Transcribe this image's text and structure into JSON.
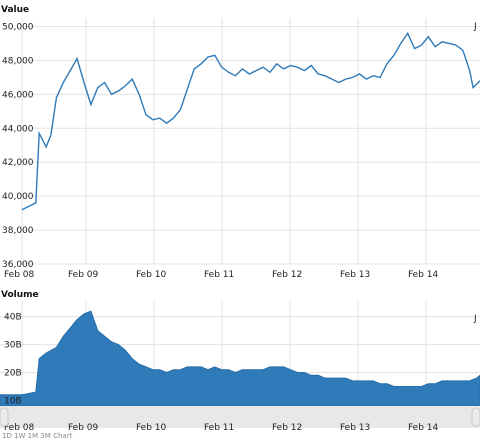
{
  "charts": {
    "value_title": "Value",
    "volume_title": "Volume",
    "corner_label": "J",
    "footer_text": "1D  1W  1M  3M  Chart"
  },
  "chart_data": [
    {
      "type": "line",
      "title": "Value",
      "xlabel": "",
      "ylabel": "",
      "x_ticks": [
        "Feb 08",
        "Feb 09",
        "Feb 10",
        "Feb 11",
        "Feb 12",
        "Feb 13",
        "Feb 14"
      ],
      "y_ticks": [
        "36,000",
        "38,000",
        "40,000",
        "42,000",
        "44,000",
        "46,000",
        "48,000",
        "50,000"
      ],
      "ylim": [
        36000,
        50500
      ],
      "xlim": [
        0,
        6.65
      ],
      "grid": true,
      "series_color": "#2f7ab9",
      "series": [
        {
          "name": "",
          "x": [
            0.0,
            0.1,
            0.2,
            0.25,
            0.3,
            0.35,
            0.42,
            0.5,
            0.6,
            0.7,
            0.8,
            0.9,
            1.0,
            1.1,
            1.2,
            1.3,
            1.4,
            1.5,
            1.6,
            1.7,
            1.8,
            1.9,
            2.0,
            2.1,
            2.2,
            2.3,
            2.4,
            2.5,
            2.6,
            2.7,
            2.8,
            2.9,
            3.0,
            3.1,
            3.2,
            3.3,
            3.4,
            3.5,
            3.6,
            3.7,
            3.8,
            3.9,
            4.0,
            4.1,
            4.2,
            4.3,
            4.4,
            4.5,
            4.6,
            4.7,
            4.8,
            4.9,
            5.0,
            5.1,
            5.2,
            5.3,
            5.4,
            5.5,
            5.6,
            5.7,
            5.8,
            5.9,
            6.0,
            6.1,
            6.2,
            6.3,
            6.4,
            6.5,
            6.55,
            6.65
          ],
          "y": [
            39200,
            39400,
            39600,
            43700,
            43300,
            42900,
            43600,
            45800,
            46700,
            47400,
            48100,
            46700,
            45400,
            46400,
            46700,
            46000,
            46200,
            46500,
            46900,
            46000,
            44800,
            44500,
            44600,
            44300,
            44600,
            45100,
            46300,
            47500,
            47800,
            48200,
            48300,
            47600,
            47300,
            47100,
            47500,
            47200,
            47400,
            47600,
            47300,
            47800,
            47500,
            47700,
            47600,
            47400,
            47700,
            47200,
            47100,
            46900,
            46700,
            46900,
            47000,
            47200,
            46900,
            47100,
            47000,
            47800,
            48300,
            49000,
            49600,
            48700,
            48900,
            49400,
            48800,
            49100,
            49000,
            48900,
            48600,
            47400,
            46400,
            46800
          ]
        }
      ]
    },
    {
      "type": "area",
      "title": "Volume",
      "xlabel": "",
      "ylabel": "",
      "x_ticks": [
        "Feb 08",
        "Feb 09",
        "Feb 10",
        "Feb 11",
        "Feb 12",
        "Feb 13",
        "Feb 14"
      ],
      "y_ticks": [
        "10B",
        "20B",
        "30B",
        "40B"
      ],
      "ylim": [
        8,
        46
      ],
      "xlim": [
        0,
        6.65
      ],
      "grid": true,
      "series_color": "#2f7ab9",
      "series": [
        {
          "name": "",
          "x": [
            0.0,
            0.2,
            0.25,
            0.35,
            0.5,
            0.6,
            0.7,
            0.8,
            0.9,
            1.0,
            1.1,
            1.2,
            1.3,
            1.4,
            1.5,
            1.6,
            1.7,
            1.8,
            1.9,
            2.0,
            2.1,
            2.2,
            2.3,
            2.4,
            2.5,
            2.6,
            2.7,
            2.8,
            2.9,
            3.0,
            3.1,
            3.2,
            3.3,
            3.4,
            3.5,
            3.6,
            3.7,
            3.8,
            3.9,
            4.0,
            4.1,
            4.2,
            4.3,
            4.4,
            4.5,
            4.6,
            4.7,
            4.8,
            4.9,
            5.0,
            5.1,
            5.2,
            5.3,
            5.4,
            5.5,
            5.6,
            5.7,
            5.8,
            5.9,
            6.0,
            6.1,
            6.2,
            6.3,
            6.4,
            6.5,
            6.6,
            6.65
          ],
          "y": [
            12,
            13,
            25,
            27,
            29,
            33,
            36,
            39,
            41,
            42,
            35,
            33,
            31,
            30,
            28,
            25,
            23,
            22,
            21,
            21,
            20,
            21,
            21,
            22,
            22,
            22,
            21,
            22,
            21,
            21,
            20,
            21,
            21,
            21,
            21,
            22,
            22,
            22,
            21,
            20,
            20,
            19,
            19,
            18,
            18,
            18,
            18,
            17,
            17,
            17,
            17,
            16,
            16,
            15,
            15,
            15,
            15,
            15,
            16,
            16,
            17,
            17,
            17,
            17,
            17,
            18,
            19
          ]
        }
      ]
    }
  ]
}
